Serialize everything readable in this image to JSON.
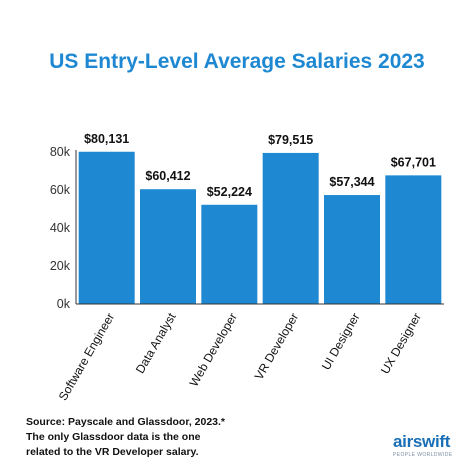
{
  "title": "US Entry-Level Average Salaries 2023",
  "colors": {
    "bar": "#1e88d2",
    "title": "#1e88d2",
    "text": "#111111",
    "axis": "#333333"
  },
  "chart_data": {
    "type": "bar",
    "title": "US Entry-Level Average Salaries 2023",
    "categories": [
      "Software Engineer",
      "Data Analyst",
      "Web Developer",
      "VR Developer",
      "UI Designer",
      "UX Designer"
    ],
    "values": [
      80131,
      60412,
      52224,
      79515,
      57344,
      67701
    ],
    "data_labels": [
      "$80,131",
      "$60,412",
      "$52,224",
      "$79,515",
      "$57,344",
      "$67,701"
    ],
    "ylim": [
      0,
      80000
    ],
    "yticks": [
      0,
      20000,
      40000,
      60000,
      80000
    ],
    "ytick_labels": [
      "0k",
      "20k",
      "40k",
      "60k",
      "80k"
    ],
    "xlabel": "",
    "ylabel": "",
    "grid": false,
    "legend": "none"
  },
  "source": {
    "line1": "Source: Payscale and Glassdoor, 2023.*",
    "line2": "The only Glassdoor data is the one",
    "line3": "related to the VR Developer salary."
  },
  "logo": {
    "text": "airswift",
    "tagline": "PEOPLE WORLDWIDE"
  }
}
